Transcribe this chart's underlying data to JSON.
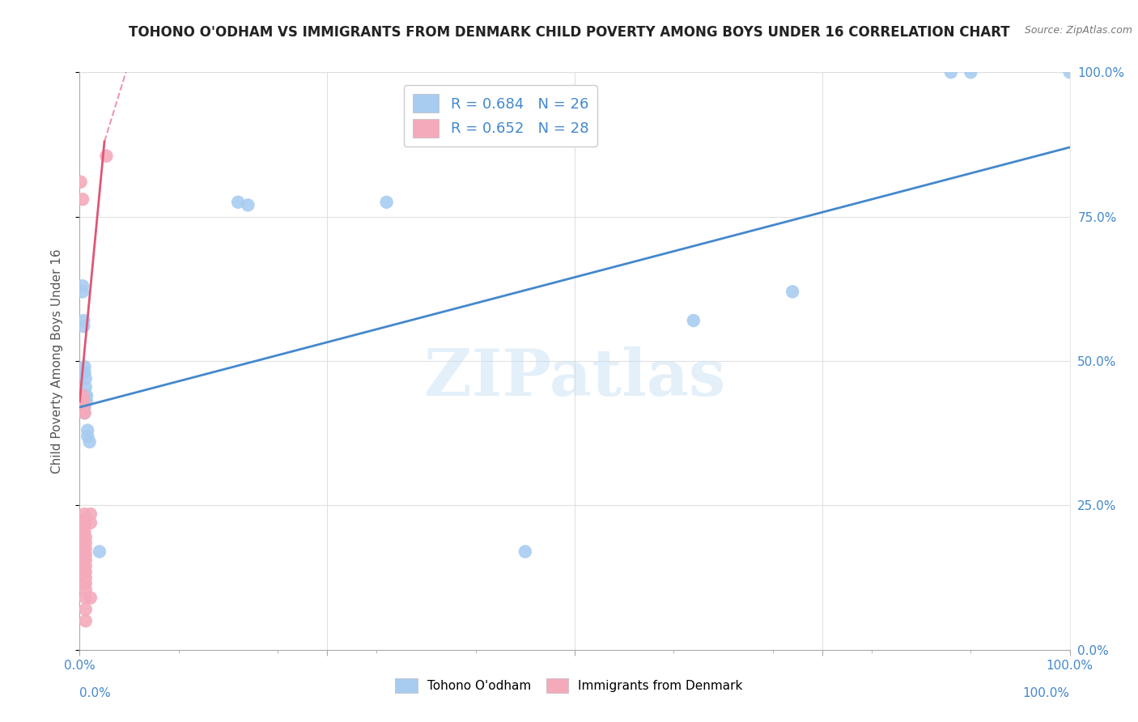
{
  "title": "TOHONO O'ODHAM VS IMMIGRANTS FROM DENMARK CHILD POVERTY AMONG BOYS UNDER 16 CORRELATION CHART",
  "source": "Source: ZipAtlas.com",
  "ylabel": "Child Poverty Among Boys Under 16",
  "watermark": "ZIPatlas",
  "blue_label": "Tohono O'odham",
  "pink_label": "Immigrants from Denmark",
  "blue_R": 0.684,
  "blue_N": 26,
  "pink_R": 0.652,
  "pink_N": 28,
  "blue_color": "#A8CCF0",
  "pink_color": "#F4AABB",
  "blue_line_color": "#4488CC",
  "pink_line_color": "#E05575",
  "blue_line": [
    0.0,
    0.42,
    1.0,
    0.87
  ],
  "pink_line_solid": [
    0.0,
    0.43,
    0.025,
    0.88
  ],
  "pink_line_dash": [
    0.025,
    0.88,
    0.11,
    1.35
  ],
  "blue_scatter": [
    [
      0.003,
      0.63
    ],
    [
      0.003,
      0.62
    ],
    [
      0.004,
      0.57
    ],
    [
      0.004,
      0.56
    ],
    [
      0.005,
      0.49
    ],
    [
      0.005,
      0.48
    ],
    [
      0.006,
      0.47
    ],
    [
      0.006,
      0.455
    ],
    [
      0.006,
      0.44
    ],
    [
      0.007,
      0.44
    ],
    [
      0.007,
      0.43
    ],
    [
      0.008,
      0.38
    ],
    [
      0.008,
      0.37
    ],
    [
      0.005,
      0.42
    ],
    [
      0.005,
      0.41
    ],
    [
      0.01,
      0.36
    ],
    [
      0.02,
      0.17
    ],
    [
      0.16,
      0.775
    ],
    [
      0.17,
      0.77
    ],
    [
      0.31,
      0.775
    ],
    [
      0.45,
      0.17
    ],
    [
      0.62,
      0.57
    ],
    [
      0.72,
      0.62
    ],
    [
      0.88,
      1.0
    ],
    [
      0.9,
      1.0
    ],
    [
      1.0,
      1.0
    ]
  ],
  "pink_scatter": [
    [
      0.001,
      0.81
    ],
    [
      0.003,
      0.78
    ],
    [
      0.003,
      0.44
    ],
    [
      0.004,
      0.43
    ],
    [
      0.004,
      0.42
    ],
    [
      0.004,
      0.415
    ],
    [
      0.005,
      0.41
    ],
    [
      0.005,
      0.235
    ],
    [
      0.005,
      0.225
    ],
    [
      0.005,
      0.215
    ],
    [
      0.005,
      0.205
    ],
    [
      0.006,
      0.195
    ],
    [
      0.006,
      0.185
    ],
    [
      0.006,
      0.175
    ],
    [
      0.006,
      0.165
    ],
    [
      0.006,
      0.155
    ],
    [
      0.006,
      0.145
    ],
    [
      0.006,
      0.135
    ],
    [
      0.006,
      0.125
    ],
    [
      0.006,
      0.115
    ],
    [
      0.006,
      0.105
    ],
    [
      0.006,
      0.09
    ],
    [
      0.006,
      0.07
    ],
    [
      0.006,
      0.05
    ],
    [
      0.011,
      0.235
    ],
    [
      0.011,
      0.22
    ],
    [
      0.011,
      0.09
    ],
    [
      0.027,
      0.855
    ]
  ],
  "xlim": [
    0.0,
    1.0
  ],
  "ylim": [
    0.0,
    1.0
  ],
  "grid_color": "#E0E0E0",
  "background_color": "#FFFFFF"
}
